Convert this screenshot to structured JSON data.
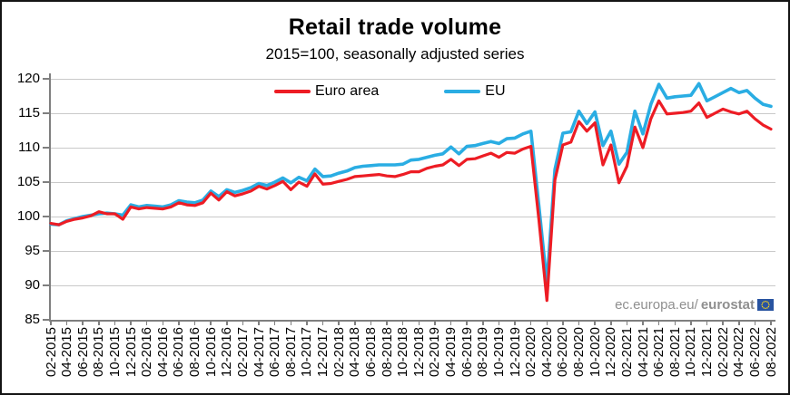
{
  "title": "Retail trade volume",
  "subtitle": "2015=100, seasonally adjusted series",
  "watermark": {
    "prefix": "ec.europa.eu/",
    "bold": "eurostat"
  },
  "chart_data": {
    "type": "line",
    "title": "Retail trade volume",
    "subtitle": "2015=100, seasonally adjusted series",
    "xlabel": "",
    "ylabel": "",
    "ylim": [
      85,
      120
    ],
    "yticks": [
      85,
      90,
      95,
      100,
      105,
      110,
      115,
      120
    ],
    "grid": "horizontal",
    "legend_position": "top-inside",
    "x": [
      "02-2015",
      "03-2015",
      "04-2015",
      "05-2015",
      "06-2015",
      "07-2015",
      "08-2015",
      "09-2015",
      "10-2015",
      "11-2015",
      "12-2015",
      "01-2016",
      "02-2016",
      "03-2016",
      "04-2016",
      "05-2016",
      "06-2016",
      "07-2016",
      "08-2016",
      "09-2016",
      "10-2016",
      "11-2016",
      "12-2016",
      "01-2017",
      "02-2017",
      "03-2017",
      "04-2017",
      "05-2017",
      "06-2017",
      "07-2017",
      "08-2017",
      "09-2017",
      "10-2017",
      "11-2017",
      "12-2017",
      "01-2018",
      "02-2018",
      "03-2018",
      "04-2018",
      "05-2018",
      "06-2018",
      "07-2018",
      "08-2018",
      "09-2018",
      "10-2018",
      "11-2018",
      "12-2018",
      "01-2019",
      "02-2019",
      "03-2019",
      "04-2019",
      "05-2019",
      "06-2019",
      "07-2019",
      "08-2019",
      "09-2019",
      "10-2019",
      "11-2019",
      "12-2019",
      "01-2020",
      "02-2020",
      "03-2020",
      "04-2020",
      "05-2020",
      "06-2020",
      "07-2020",
      "08-2020",
      "09-2020",
      "10-2020",
      "11-2020",
      "12-2020",
      "01-2021",
      "02-2021",
      "03-2021",
      "04-2021",
      "05-2021",
      "06-2021",
      "07-2021",
      "08-2021",
      "09-2021",
      "10-2021",
      "11-2021",
      "12-2021",
      "01-2022",
      "02-2022",
      "03-2022",
      "04-2022",
      "05-2022",
      "06-2022",
      "07-2022",
      "08-2022"
    ],
    "x_tick_labels": [
      "02-2015",
      "04-2015",
      "06-2015",
      "08-2015",
      "10-2015",
      "12-2015",
      "02-2016",
      "04-2016",
      "06-2016",
      "08-2016",
      "10-2016",
      "12-2016",
      "02-2017",
      "04-2017",
      "06-2017",
      "08-2017",
      "10-2017",
      "12-2017",
      "02-2018",
      "04-2018",
      "06-2018",
      "08-2018",
      "10-2018",
      "12-2018",
      "02-2019",
      "04-2019",
      "06-2019",
      "08-2019",
      "10-2019",
      "12-2019",
      "02-2020",
      "04-2020",
      "06-2020",
      "08-2020",
      "10-2020",
      "12-2020",
      "02-2021",
      "04-2021",
      "06-2021",
      "08-2021",
      "10-2021",
      "12-2021",
      "02-2022",
      "04-2022",
      "06-2022",
      "08-2022"
    ],
    "series": [
      {
        "name": "Euro area",
        "color": "#ed1c24",
        "values": [
          99.0,
          98.8,
          99.3,
          99.6,
          99.8,
          100.1,
          100.7,
          100.4,
          100.4,
          99.6,
          101.4,
          101.1,
          101.3,
          101.2,
          101.1,
          101.4,
          102.0,
          101.7,
          101.6,
          102.0,
          103.4,
          102.4,
          103.6,
          103.0,
          103.3,
          103.7,
          104.4,
          104.0,
          104.5,
          105.1,
          103.9,
          105.0,
          104.4,
          106.2,
          104.7,
          104.8,
          105.1,
          105.4,
          105.8,
          105.9,
          106.0,
          106.1,
          105.9,
          105.8,
          106.1,
          106.5,
          106.5,
          107.0,
          107.3,
          107.5,
          108.3,
          107.4,
          108.3,
          108.4,
          108.8,
          109.2,
          108.6,
          109.3,
          109.2,
          109.8,
          110.2,
          99.5,
          87.8,
          105.3,
          110.4,
          110.8,
          113.8,
          112.4,
          113.6,
          107.5,
          110.4,
          104.9,
          107.3,
          113.0,
          110.0,
          114.2,
          116.8,
          114.9,
          115.0,
          115.1,
          115.3,
          116.5,
          114.4,
          115.0,
          115.6,
          115.2,
          114.9,
          115.3,
          114.2,
          113.3,
          112.7
        ]
      },
      {
        "name": "EU",
        "color": "#2aade3",
        "values": [
          98.9,
          98.8,
          99.4,
          99.7,
          100.0,
          100.2,
          100.4,
          100.5,
          100.4,
          100.2,
          101.7,
          101.4,
          101.6,
          101.5,
          101.4,
          101.7,
          102.3,
          102.1,
          102.0,
          102.4,
          103.7,
          102.9,
          103.9,
          103.5,
          103.8,
          104.2,
          104.8,
          104.5,
          105.0,
          105.6,
          104.9,
          105.7,
          105.2,
          106.9,
          105.8,
          105.9,
          106.3,
          106.6,
          107.1,
          107.3,
          107.4,
          107.5,
          107.5,
          107.5,
          107.6,
          108.2,
          108.3,
          108.6,
          108.9,
          109.1,
          110.1,
          109.1,
          110.2,
          110.3,
          110.6,
          110.9,
          110.6,
          111.3,
          111.4,
          112.0,
          112.4,
          101.5,
          90.3,
          106.8,
          112.1,
          112.3,
          115.3,
          113.5,
          115.2,
          110.3,
          112.4,
          107.6,
          109.3,
          115.3,
          112.0,
          116.3,
          119.2,
          117.2,
          117.4,
          117.5,
          117.6,
          119.3,
          116.8,
          117.4,
          118.0,
          118.6,
          118.0,
          118.3,
          117.2,
          116.3,
          116.0
        ]
      }
    ]
  }
}
